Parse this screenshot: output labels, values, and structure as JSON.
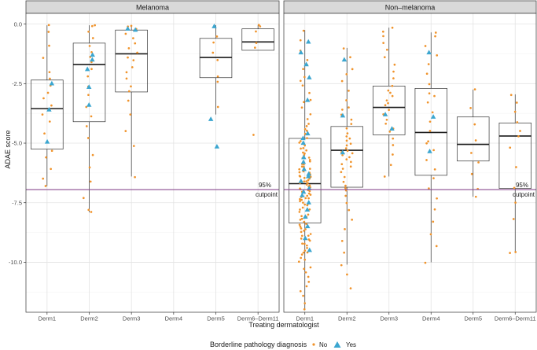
{
  "chart_data": {
    "type": "boxplot-jitter",
    "ylabel": "ADAE score",
    "xlabel": "Treating dermatologist",
    "categories": [
      "Derm1",
      "Derm2",
      "Derm3",
      "Derm4",
      "Derm5",
      "Derm6–Derm11"
    ],
    "y_ticks": [
      0,
      -2.5,
      -5,
      -7.5,
      -10
    ],
    "y_tick_labels": [
      "0.0",
      "-2.5",
      "-5.0",
      "-7.5",
      "-10.0"
    ],
    "ylim": [
      -12.1,
      0.45
    ],
    "grid": true,
    "cutpoint": {
      "value": -6.95,
      "label_line1": "95%",
      "label_line2": "cutpoint",
      "color": "#8a4b8f"
    },
    "legend": {
      "position": "bottom",
      "title": "Borderline pathology diagnosis",
      "entries": [
        {
          "label": "No",
          "color": "#f0932b",
          "shape": "dot"
        },
        {
          "label": "Yes",
          "color": "#3ba6d0",
          "shape": "triangle"
        }
      ]
    },
    "panels": [
      {
        "title": "Melanoma",
        "boxes": [
          {
            "category": "Derm1",
            "q1": -5.25,
            "median": -3.55,
            "q3": -2.35,
            "whisker_low": -6.8,
            "whisker_high": -0.05
          },
          {
            "category": "Derm2",
            "q1": -4.1,
            "median": -1.7,
            "q3": -0.8,
            "whisker_low": -7.9,
            "whisker_high": -0.05
          },
          {
            "category": "Derm3",
            "q1": -2.85,
            "median": -1.25,
            "q3": -0.25,
            "whisker_low": -6.4,
            "whisker_high": -0.05
          },
          {
            "category": "Derm5",
            "q1": -2.25,
            "median": -1.4,
            "q3": -0.6,
            "whisker_low": -3.8,
            "whisker_high": -0.05
          },
          {
            "category": "Derm6–Derm11",
            "q1": -1.1,
            "median": -0.75,
            "q3": -0.2,
            "whisker_low": -1.1,
            "whisker_high": -0.05
          }
        ],
        "points_no": [
          {
            "category": "Derm1",
            "values": [
              -0.05,
              -0.3,
              -0.9,
              -1.4,
              -2.0,
              -2.3,
              -2.6,
              -2.9,
              -3.1,
              -3.4,
              -3.8,
              -4.1,
              -4.6,
              -5.3,
              -5.6,
              -6.1,
              -6.5,
              -6.8
            ]
          },
          {
            "category": "Derm2",
            "values": [
              -0.05,
              -0.1,
              -0.3,
              -0.6,
              -0.9,
              -1.2,
              -1.4,
              -1.6,
              -1.9,
              -2.2,
              -2.6,
              -3.0,
              -3.5,
              -3.9,
              -4.3,
              -4.8,
              -5.5,
              -6.0,
              -6.6,
              -7.3,
              -7.8,
              -7.9
            ]
          },
          {
            "category": "Derm3",
            "values": [
              -0.05,
              -0.1,
              -0.2,
              -0.4,
              -0.6,
              -0.8,
              -1.0,
              -1.2,
              -1.4,
              -1.5,
              -1.8,
              -2.0,
              -2.3,
              -2.6,
              -2.8,
              -3.2,
              -3.8,
              -4.5,
              -5.1,
              -6.4
            ]
          },
          {
            "category": "Derm5",
            "values": [
              -0.5,
              -0.8,
              -1.2,
              -1.5,
              -2.2,
              -2.4,
              -3.5
            ]
          },
          {
            "category": "Derm6–Derm11",
            "values": [
              -0.05,
              -0.1,
              -0.3,
              -0.8,
              -1.0,
              -4.65
            ]
          }
        ],
        "points_yes": [
          {
            "category": "Derm1",
            "values": [
              -2.5,
              -3.6,
              -4.95
            ]
          },
          {
            "category": "Derm2",
            "values": [
              -1.3,
              -1.5,
              -1.9,
              -2.65,
              -3.4
            ]
          },
          {
            "category": "Derm3",
            "values": [
              -0.2,
              -0.25
            ]
          },
          {
            "category": "Derm5",
            "values": [
              -0.1,
              -4.0,
              -5.15
            ]
          }
        ]
      },
      {
        "title": "Non–melanoma",
        "boxes": [
          {
            "category": "Derm1",
            "q1": -8.35,
            "median": -6.7,
            "q3": -4.8,
            "whisker_low": -12.0,
            "whisker_high": -0.25
          },
          {
            "category": "Derm2",
            "q1": -6.85,
            "median": -5.3,
            "q3": -4.3,
            "whisker_low": -10.1,
            "whisker_high": -1.0
          },
          {
            "category": "Derm3",
            "q1": -4.65,
            "median": -3.5,
            "q3": -2.6,
            "whisker_low": -6.4,
            "whisker_high": -0.15
          },
          {
            "category": "Derm4",
            "q1": -6.35,
            "median": -4.55,
            "q3": -2.7,
            "whisker_low": -10.0,
            "whisker_high": -0.35
          },
          {
            "category": "Derm5",
            "q1": -5.75,
            "median": -5.05,
            "q3": -3.9,
            "whisker_low": -7.25,
            "whisker_high": -2.75
          },
          {
            "category": "Derm6–Derm11",
            "q1": -6.9,
            "median": -4.7,
            "q3": -4.15,
            "whisker_low": -9.55,
            "whisker_high": -2.95
          }
        ],
        "points_no": [
          {
            "category": "Derm1",
            "values": [
              -0.3,
              -0.7,
              -1.1,
              -1.5,
              -1.9,
              -2.2,
              -2.6,
              -2.9,
              -3.2,
              -3.5,
              -3.8,
              -4.0,
              -4.2,
              -4.4,
              -4.6,
              -4.8,
              -4.9,
              -5.0,
              -5.1,
              -5.2,
              -5.3,
              -5.4,
              -5.5,
              -5.6,
              -5.7,
              -5.8,
              -5.9,
              -6.0,
              -6.05,
              -6.1,
              -6.2,
              -6.25,
              -6.3,
              -6.4,
              -6.45,
              -6.5,
              -6.55,
              -6.6,
              -6.65,
              -6.7,
              -6.75,
              -6.8,
              -6.85,
              -6.9,
              -6.95,
              -7.0,
              -7.05,
              -7.1,
              -7.2,
              -7.25,
              -7.3,
              -7.4,
              -7.45,
              -7.5,
              -7.6,
              -7.7,
              -7.8,
              -7.9,
              -8.0,
              -8.1,
              -8.2,
              -8.3,
              -8.4,
              -8.5,
              -8.6,
              -8.7,
              -8.8,
              -8.9,
              -9.0,
              -9.1,
              -9.2,
              -9.3,
              -9.4,
              -9.5,
              -9.6,
              -9.7,
              -9.8,
              -9.9,
              -10.0,
              -10.2,
              -10.4,
              -10.6,
              -10.8,
              -11.0,
              -11.2,
              -11.4,
              -11.7,
              -12.0,
              -4.5,
              -5.2,
              -5.9,
              -6.35,
              -6.6,
              -7.15,
              -7.55,
              -8.05,
              -8.45,
              -9.05,
              -5.6,
              -6.0,
              -6.9,
              -7.3,
              -7.8,
              -8.2,
              -8.6,
              -9.2,
              -6.4,
              -6.8,
              -7.6,
              -3.3,
              -2.4,
              -1.7,
              -4.3,
              -5.45,
              -7.0,
              -8.9,
              -9.6,
              -10.3,
              -6.2,
              -7.35,
              -5.75,
              -8.75
            ],
            "note": "dense cluster"
          },
          {
            "category": "Derm2",
            "values": [
              -1.0,
              -1.4,
              -1.9,
              -2.4,
              -2.8,
              -3.2,
              -3.5,
              -3.8,
              -4.0,
              -4.2,
              -4.4,
              -4.6,
              -4.7,
              -4.9,
              -5.0,
              -5.1,
              -5.2,
              -5.3,
              -5.4,
              -5.5,
              -5.6,
              -5.7,
              -5.8,
              -5.9,
              -6.0,
              -6.2,
              -6.4,
              -6.6,
              -6.8,
              -7.0,
              -7.2,
              -7.5,
              -7.8,
              -8.2,
              -8.6,
              -9.1,
              -9.6,
              -10.1,
              -10.5,
              -11.1,
              -4.8,
              -5.35,
              -6.1,
              -6.9,
              -3.6,
              -2.1
            ]
          },
          {
            "category": "Derm3",
            "values": [
              -0.15,
              -0.3,
              -0.5,
              -0.8,
              -1.1,
              -1.4,
              -1.7,
              -2.0,
              -2.3,
              -2.6,
              -2.8,
              -3.0,
              -3.2,
              -3.4,
              -3.6,
              -3.8,
              -4.0,
              -4.2,
              -4.5,
              -4.8,
              -5.1,
              -5.5,
              -5.9,
              -6.4,
              -3.3,
              -2.9,
              -4.4
            ]
          },
          {
            "category": "Derm4",
            "values": [
              -0.35,
              -0.5,
              -0.9,
              -1.3,
              -1.7,
              -2.1,
              -2.5,
              -2.9,
              -3.3,
              -3.7,
              -4.1,
              -4.5,
              -4.9,
              -5.3,
              -5.7,
              -6.1,
              -6.5,
              -6.9,
              -7.3,
              -7.8,
              -8.3,
              -8.8,
              -9.3,
              -10.0,
              -5.0,
              -3.0
            ]
          },
          {
            "category": "Derm5",
            "values": [
              -2.75,
              -3.5,
              -4.2,
              -4.9,
              -5.4,
              -5.8,
              -6.3,
              -6.9,
              -7.25
            ]
          },
          {
            "category": "Derm6–Derm11",
            "values": [
              -2.95,
              -3.3,
              -3.7,
              -4.1,
              -4.5,
              -4.7,
              -5.2,
              -6.0,
              -6.9,
              -7.5,
              -8.2,
              -9.55,
              -9.6
            ]
          }
        ],
        "points_yes": [
          {
            "category": "Derm1",
            "values": [
              -0.75,
              -1.2,
              -1.7,
              -2.25,
              -3.2,
              -4.6,
              -4.8,
              -5.0,
              -5.6,
              -5.8,
              -6.1,
              -6.4,
              -6.6,
              -6.9,
              -7.2,
              -7.5,
              -7.8,
              -8.1,
              -8.5,
              -9.0,
              -9.5,
              -6.3,
              -7.05
            ]
          },
          {
            "category": "Derm2",
            "values": [
              -1.5,
              -3.85,
              -5.4
            ]
          },
          {
            "category": "Derm3",
            "values": [
              -3.8,
              -4.4
            ]
          },
          {
            "category": "Derm4",
            "values": [
              -1.2,
              -3.9,
              -5.35
            ]
          }
        ]
      }
    ]
  }
}
